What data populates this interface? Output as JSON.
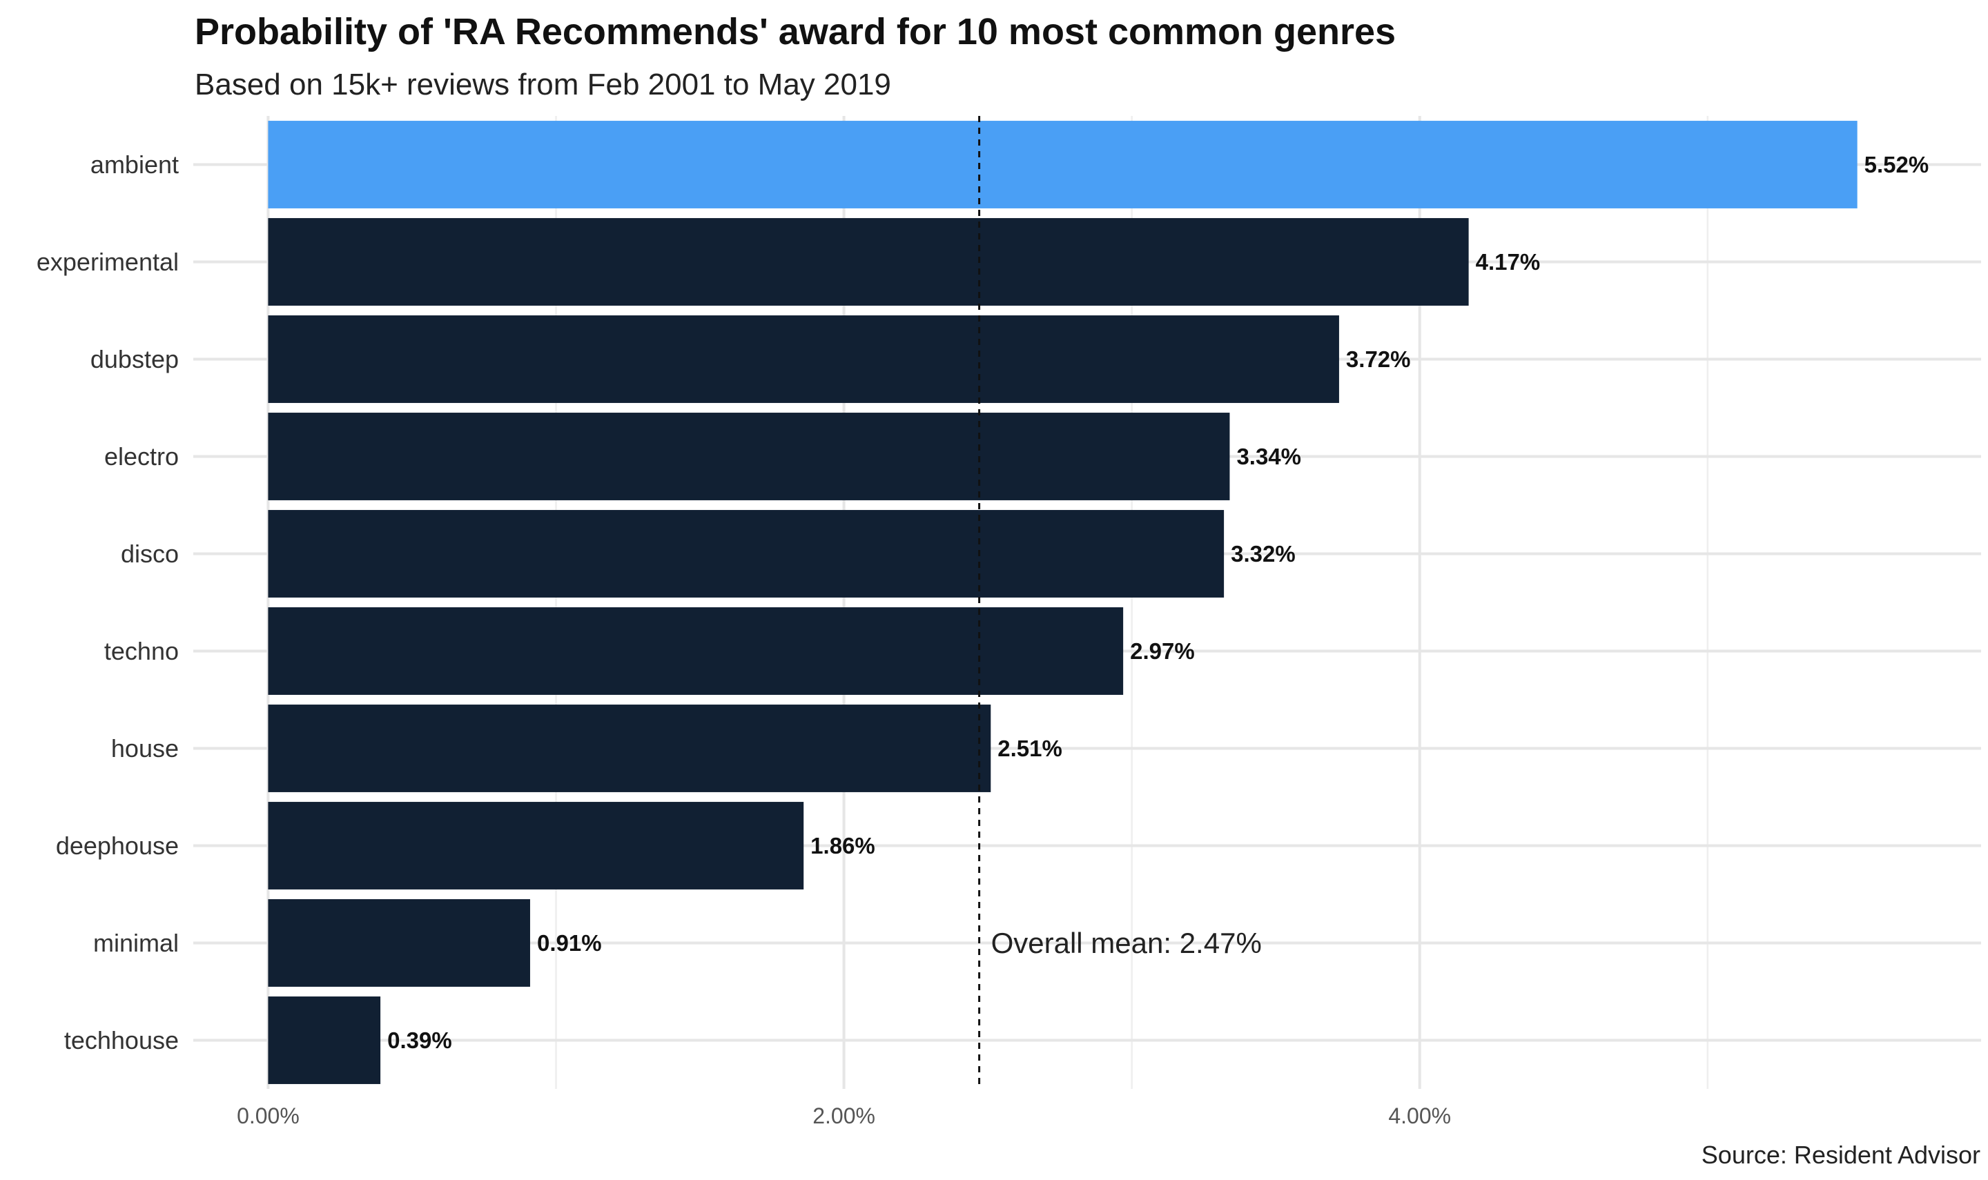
{
  "chart_data": {
    "type": "bar",
    "orientation": "horizontal",
    "title": "Probability of 'RA Recommends' award for 10 most common genres",
    "subtitle": "Based on 15k+ reviews from Feb 2001 to May 2019",
    "caption": "Source: Resident Advisor",
    "categories": [
      "ambient",
      "experimental",
      "dubstep",
      "electro",
      "disco",
      "techno",
      "house",
      "deephouse",
      "minimal",
      "techhouse"
    ],
    "values": [
      5.52,
      4.17,
      3.72,
      3.34,
      3.32,
      2.97,
      2.51,
      1.86,
      0.91,
      0.39
    ],
    "value_labels": [
      "5.52%",
      "4.17%",
      "3.72%",
      "3.34%",
      "3.32%",
      "2.97%",
      "2.51%",
      "1.86%",
      "0.91%",
      "0.39%"
    ],
    "highlight_category": "ambient",
    "colors": {
      "bar": "#112033",
      "highlight": "#4a9ff5",
      "mean_line": "#111111"
    },
    "xticks": [
      0,
      2,
      4
    ],
    "xtick_labels": [
      "0.00%",
      "2.00%",
      "4.00%"
    ],
    "xlim": [
      -0.26,
      5.95
    ],
    "xlabel": "",
    "ylabel": "",
    "grid": true,
    "legend": "none",
    "mean": {
      "value": 2.47,
      "label": "Overall mean: 2.47%"
    }
  }
}
